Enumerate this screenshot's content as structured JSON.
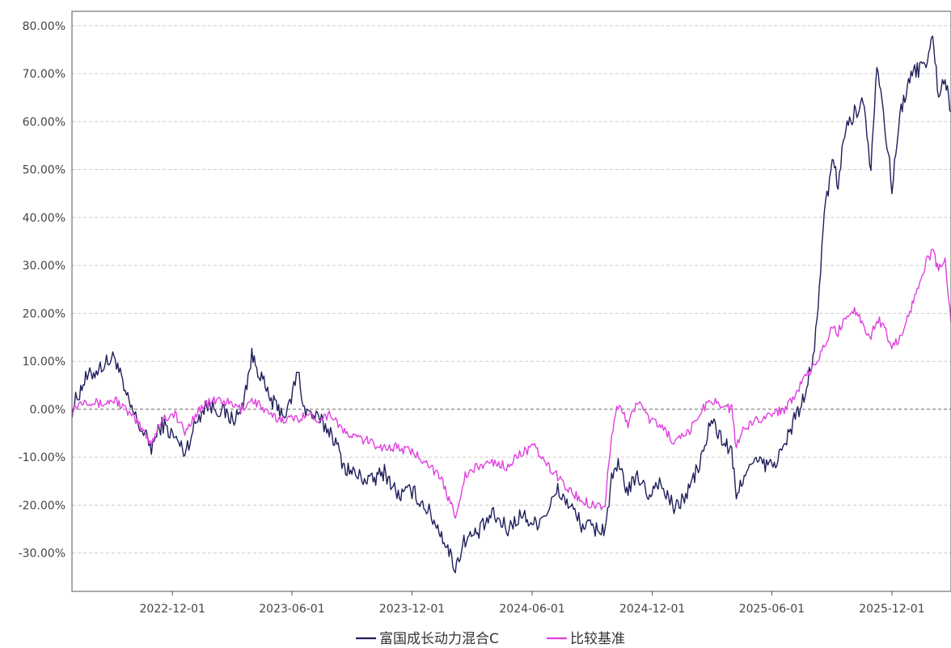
{
  "chart_data": {
    "type": "line",
    "title": "",
    "xlabel": "",
    "ylabel": "",
    "grid": true,
    "legend_position": "bottom-center",
    "x_range": [
      "2022-07-01",
      "2026-03-01"
    ],
    "ylim": [
      -38,
      83
    ],
    "y_ticks": [
      -30,
      -20,
      -10,
      0,
      10,
      20,
      30,
      40,
      50,
      60,
      70,
      80
    ],
    "y_tick_labels": [
      "-30.00%",
      "-20.00%",
      "-10.00%",
      "0.00%",
      "10.00%",
      "20.00%",
      "30.00%",
      "40.00%",
      "50.00%",
      "60.00%",
      "70.00%",
      "80.00%"
    ],
    "x_ticks": [
      "2022-12-01",
      "2023-06-01",
      "2023-12-01",
      "2024-06-01",
      "2024-12-01",
      "2025-06-01",
      "2025-12-01"
    ],
    "series": [
      {
        "name": "富国成长动力混合C",
        "color": "#1f1f5c",
        "points": [
          [
            "2022-07-01",
            0
          ],
          [
            "2022-07-20",
            6
          ],
          [
            "2022-08-15",
            9
          ],
          [
            "2022-09-05",
            11
          ],
          [
            "2022-09-20",
            3
          ],
          [
            "2022-10-10",
            -3
          ],
          [
            "2022-10-30",
            -8
          ],
          [
            "2022-11-15",
            -3
          ],
          [
            "2022-12-05",
            -6
          ],
          [
            "2022-12-20",
            -9
          ],
          [
            "2023-01-05",
            -3
          ],
          [
            "2023-01-20",
            1
          ],
          [
            "2023-02-10",
            0
          ],
          [
            "2023-03-01",
            -2
          ],
          [
            "2023-03-15",
            -1
          ],
          [
            "2023-04-01",
            11
          ],
          [
            "2023-04-12",
            8
          ],
          [
            "2023-04-25",
            3
          ],
          [
            "2023-05-10",
            0
          ],
          [
            "2023-05-25",
            -1
          ],
          [
            "2023-06-10",
            8
          ],
          [
            "2023-06-20",
            0
          ],
          [
            "2023-07-10",
            -2
          ],
          [
            "2023-08-01",
            -5
          ],
          [
            "2023-08-20",
            -12
          ],
          [
            "2023-09-10",
            -14
          ],
          [
            "2023-10-01",
            -15
          ],
          [
            "2023-10-20",
            -13
          ],
          [
            "2023-11-10",
            -18
          ],
          [
            "2023-12-01",
            -17
          ],
          [
            "2023-12-25",
            -21
          ],
          [
            "2024-01-15",
            -26
          ],
          [
            "2024-02-05",
            -33
          ],
          [
            "2024-02-20",
            -27
          ],
          [
            "2024-03-10",
            -26
          ],
          [
            "2024-04-01",
            -22
          ],
          [
            "2024-04-25",
            -25
          ],
          [
            "2024-05-15",
            -22
          ],
          [
            "2024-06-05",
            -24
          ],
          [
            "2024-06-25",
            -21
          ],
          [
            "2024-07-10",
            -17
          ],
          [
            "2024-07-28",
            -20
          ],
          [
            "2024-08-15",
            -24
          ],
          [
            "2024-09-05",
            -25
          ],
          [
            "2024-09-20",
            -25
          ],
          [
            "2024-09-30",
            -15
          ],
          [
            "2024-10-10",
            -12
          ],
          [
            "2024-10-25",
            -17
          ],
          [
            "2024-11-10",
            -14
          ],
          [
            "2024-11-25",
            -18
          ],
          [
            "2024-12-10",
            -15
          ],
          [
            "2025-01-05",
            -21
          ],
          [
            "2025-01-25",
            -17
          ],
          [
            "2025-02-15",
            -10
          ],
          [
            "2025-03-01",
            -2
          ],
          [
            "2025-03-15",
            -6
          ],
          [
            "2025-04-01",
            -9
          ],
          [
            "2025-04-08",
            -19
          ],
          [
            "2025-04-20",
            -13
          ],
          [
            "2025-05-10",
            -11
          ],
          [
            "2025-06-01",
            -12
          ],
          [
            "2025-06-20",
            -8
          ],
          [
            "2025-07-05",
            -2
          ],
          [
            "2025-07-20",
            2
          ],
          [
            "2025-08-05",
            12
          ],
          [
            "2025-08-20",
            40
          ],
          [
            "2025-09-01",
            52
          ],
          [
            "2025-09-10",
            47
          ],
          [
            "2025-09-20",
            58
          ],
          [
            "2025-10-05",
            62
          ],
          [
            "2025-10-20",
            64
          ],
          [
            "2025-10-30",
            50
          ],
          [
            "2025-11-08",
            73
          ],
          [
            "2025-11-20",
            60
          ],
          [
            "2025-12-01",
            46
          ],
          [
            "2025-12-15",
            63
          ],
          [
            "2026-01-01",
            70
          ],
          [
            "2026-01-20",
            72
          ],
          [
            "2026-02-01",
            77
          ],
          [
            "2026-02-10",
            66
          ],
          [
            "2026-02-20",
            69
          ],
          [
            "2026-03-01",
            62
          ]
        ]
      },
      {
        "name": "比较基准",
        "color": "#e040e0",
        "points": [
          [
            "2022-07-01",
            0
          ],
          [
            "2022-07-20",
            2
          ],
          [
            "2022-08-15",
            1
          ],
          [
            "2022-09-05",
            2
          ],
          [
            "2022-09-20",
            0
          ],
          [
            "2022-10-10",
            -3
          ],
          [
            "2022-10-30",
            -7
          ],
          [
            "2022-11-15",
            -2
          ],
          [
            "2022-12-05",
            -1
          ],
          [
            "2022-12-20",
            -5
          ],
          [
            "2023-01-05",
            -1
          ],
          [
            "2023-01-20",
            1
          ],
          [
            "2023-02-10",
            2
          ],
          [
            "2023-03-01",
            1
          ],
          [
            "2023-03-15",
            0
          ],
          [
            "2023-04-01",
            2
          ],
          [
            "2023-04-12",
            1
          ],
          [
            "2023-04-25",
            -1
          ],
          [
            "2023-05-10",
            -2
          ],
          [
            "2023-05-25",
            -2
          ],
          [
            "2023-06-10",
            -2
          ],
          [
            "2023-06-20",
            -1
          ],
          [
            "2023-07-10",
            -2
          ],
          [
            "2023-08-01",
            -1
          ],
          [
            "2023-08-20",
            -5
          ],
          [
            "2023-09-10",
            -6
          ],
          [
            "2023-10-01",
            -7
          ],
          [
            "2023-10-20",
            -8
          ],
          [
            "2023-11-10",
            -8
          ],
          [
            "2023-12-01",
            -9
          ],
          [
            "2023-12-25",
            -11
          ],
          [
            "2024-01-15",
            -15
          ],
          [
            "2024-02-05",
            -22
          ],
          [
            "2024-02-20",
            -14
          ],
          [
            "2024-03-10",
            -12
          ],
          [
            "2024-04-01",
            -11
          ],
          [
            "2024-04-25",
            -12
          ],
          [
            "2024-05-15",
            -9
          ],
          [
            "2024-06-05",
            -8
          ],
          [
            "2024-06-25",
            -12
          ],
          [
            "2024-07-10",
            -14
          ],
          [
            "2024-07-28",
            -17
          ],
          [
            "2024-08-15",
            -19
          ],
          [
            "2024-09-05",
            -20
          ],
          [
            "2024-09-20",
            -20
          ],
          [
            "2024-09-30",
            -5
          ],
          [
            "2024-10-10",
            1
          ],
          [
            "2024-10-25",
            -3
          ],
          [
            "2024-11-10",
            2
          ],
          [
            "2024-11-25",
            -2
          ],
          [
            "2024-12-10",
            -3
          ],
          [
            "2025-01-05",
            -7
          ],
          [
            "2025-01-25",
            -5
          ],
          [
            "2025-02-15",
            0
          ],
          [
            "2025-03-01",
            2
          ],
          [
            "2025-03-15",
            1
          ],
          [
            "2025-04-01",
            0
          ],
          [
            "2025-04-08",
            -8
          ],
          [
            "2025-04-20",
            -4
          ],
          [
            "2025-05-10",
            -2
          ],
          [
            "2025-06-01",
            -1
          ],
          [
            "2025-06-20",
            0
          ],
          [
            "2025-07-05",
            3
          ],
          [
            "2025-07-20",
            6
          ],
          [
            "2025-08-05",
            9
          ],
          [
            "2025-08-20",
            13
          ],
          [
            "2025-09-01",
            17
          ],
          [
            "2025-09-10",
            16
          ],
          [
            "2025-09-20",
            19
          ],
          [
            "2025-10-05",
            21
          ],
          [
            "2025-10-20",
            17
          ],
          [
            "2025-10-30",
            15
          ],
          [
            "2025-11-08",
            19
          ],
          [
            "2025-11-20",
            17
          ],
          [
            "2025-12-01",
            13
          ],
          [
            "2025-12-15",
            15
          ],
          [
            "2026-01-01",
            22
          ],
          [
            "2026-01-20",
            30
          ],
          [
            "2026-02-01",
            33
          ],
          [
            "2026-02-10",
            29
          ],
          [
            "2026-02-20",
            31
          ],
          [
            "2026-03-01",
            18
          ]
        ]
      }
    ]
  }
}
